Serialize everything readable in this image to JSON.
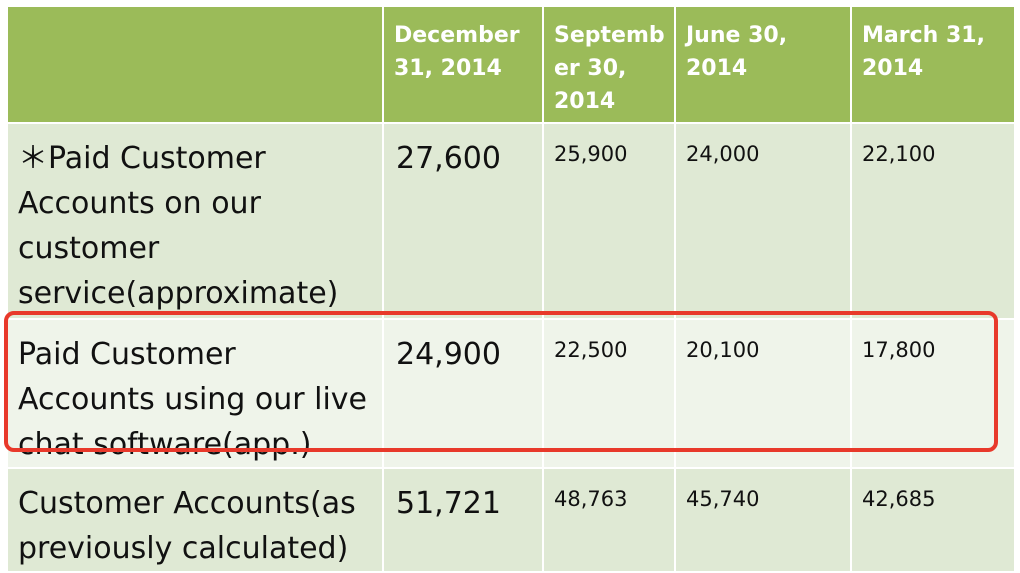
{
  "table": {
    "headers": [
      "",
      "December 31, 2014",
      "Septemb er 30, 2014",
      "June 30, 2014",
      "March 31, 2014"
    ],
    "rows": [
      {
        "label": "＊Paid Customer Accounts on our customer service(approximate)",
        "values": [
          "27,600",
          "25,900",
          "24,000",
          "22,100"
        ]
      },
      {
        "label": "Paid Customer Accounts using our live chat software(app.)",
        "values": [
          "24,900",
          "22,500",
          "20,100",
          "17,800"
        ]
      },
      {
        "label": "Customer Accounts(as previously calculated)",
        "values": [
          "51,721",
          "48,763",
          "45,740",
          "42,685"
        ]
      }
    ]
  },
  "colors": {
    "header_bg": "#9bbb59",
    "row_odd_bg": "#dfe9d4",
    "row_even_bg": "#eff4ea",
    "highlight": "#e8392b"
  }
}
